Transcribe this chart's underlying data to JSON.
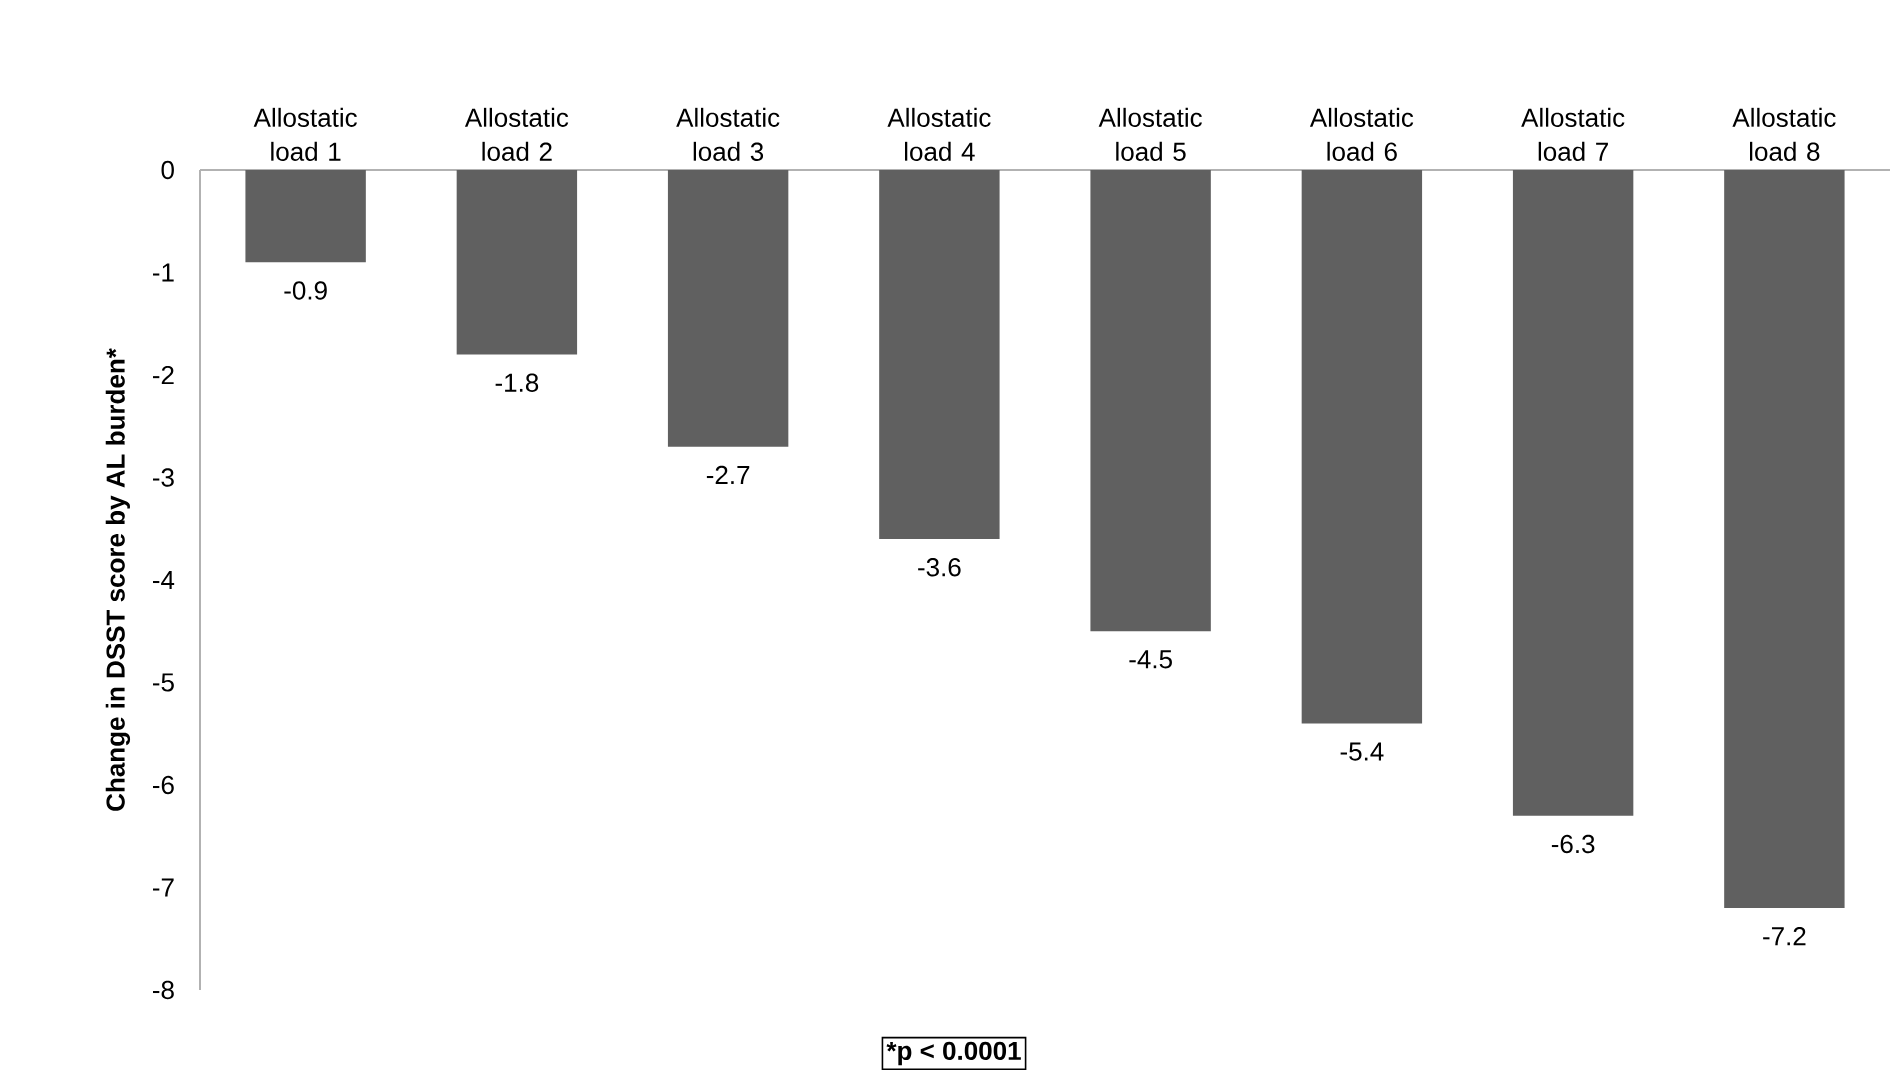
{
  "chart_data": {
    "type": "bar",
    "ylabel": "Change in DSST score by AL burden*",
    "categories": [
      "Allostatic load 1",
      "Allostatic load 2",
      "Allostatic load 3",
      "Allostatic load 4",
      "Allostatic load 5",
      "Allostatic load 6",
      "Allostatic load 7",
      "Allostatic load 8"
    ],
    "values": [
      -0.9,
      -1.8,
      -2.7,
      -3.6,
      -4.5,
      -5.4,
      -6.3,
      -7.2
    ],
    "color": "#606060",
    "ylim": [
      -8,
      0
    ],
    "yticks": [
      -8,
      -7,
      -6,
      -5,
      -4,
      -3,
      -2,
      -1,
      0
    ],
    "grid": false,
    "data_labels": true,
    "annotations": [
      "*p < 0.0001"
    ]
  }
}
